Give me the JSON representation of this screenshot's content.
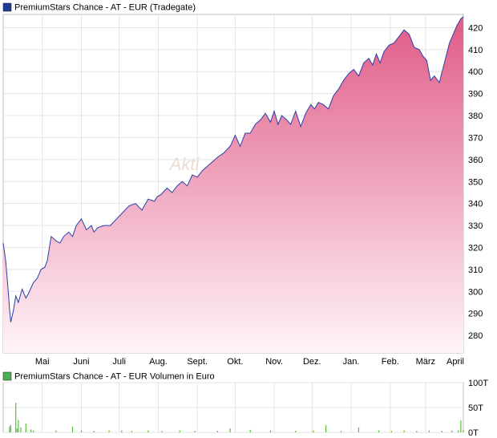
{
  "chart_data": [
    {
      "type": "area",
      "title": "PremiumStars Chance - AT - EUR (Tradegate)",
      "legend_color": "#1f3a93",
      "line_color": "#2a3fa8",
      "fill_top_color": "#e05a86",
      "fill_bottom_color": "#fff5f8",
      "watermark": "Akti",
      "grid": true,
      "ylim": [
        272,
        426
      ],
      "yticks": [
        280,
        290,
        300,
        310,
        320,
        330,
        340,
        350,
        360,
        370,
        380,
        390,
        400,
        410,
        420
      ],
      "xlim": [
        0,
        365
      ],
      "month_ticks": [
        {
          "label": "Mai",
          "x": 31
        },
        {
          "label": "Juni",
          "x": 62
        },
        {
          "label": "Juli",
          "x": 92
        },
        {
          "label": "Aug.",
          "x": 123
        },
        {
          "label": "Sept.",
          "x": 154
        },
        {
          "label": "Okt.",
          "x": 184
        },
        {
          "label": "Nov.",
          "x": 215
        },
        {
          "label": "Dez.",
          "x": 245
        },
        {
          "label": "Jan.",
          "x": 276
        },
        {
          "label": "Feb.",
          "x": 307
        },
        {
          "label": "März",
          "x": 335
        },
        {
          "label": "April",
          "x": 366
        }
      ],
      "x": [
        0,
        2,
        4,
        5,
        6,
        8,
        10,
        12,
        15,
        18,
        20,
        24,
        27,
        30,
        33,
        35,
        38,
        42,
        45,
        48,
        52,
        55,
        58,
        62,
        66,
        70,
        72,
        75,
        80,
        85,
        90,
        95,
        100,
        105,
        110,
        115,
        120,
        122,
        125,
        130,
        134,
        138,
        142,
        146,
        150,
        154,
        158,
        162,
        166,
        170,
        175,
        180,
        184,
        188,
        192,
        196,
        200,
        204,
        208,
        212,
        215,
        218,
        221,
        225,
        228,
        232,
        236,
        240,
        244,
        247,
        250,
        254,
        258,
        262,
        266,
        270,
        274,
        278,
        282,
        286,
        290,
        293,
        296,
        299,
        302,
        306,
        310,
        314,
        318,
        322,
        326,
        330,
        333,
        336,
        339,
        342,
        346,
        350,
        354,
        357,
        360,
        363,
        365
      ],
      "values": [
        322,
        314,
        300,
        292,
        286,
        291,
        298,
        295,
        301,
        297,
        299,
        304,
        306,
        310,
        311,
        314,
        325,
        323,
        322,
        325,
        327,
        325,
        330,
        333,
        328,
        330,
        327,
        329,
        330,
        330,
        333,
        336,
        339,
        340,
        337,
        342,
        341,
        343,
        344,
        347,
        345,
        348,
        350,
        348,
        353,
        352,
        355,
        357,
        359,
        361,
        363,
        366,
        371,
        366,
        372,
        372,
        376,
        378,
        381,
        377,
        382,
        376,
        380,
        378,
        376,
        382,
        375,
        381,
        385,
        383,
        386,
        385,
        383,
        389,
        392,
        396,
        399,
        401,
        398,
        404,
        406,
        403,
        408,
        404,
        409,
        412,
        413,
        416,
        419,
        417,
        411,
        410,
        407,
        405,
        396,
        398,
        395,
        404,
        413,
        417,
        421,
        424,
        425
      ]
    },
    {
      "type": "bar",
      "title": "PremiumStars Chance - AT - EUR Volumen in Euro",
      "legend_color": "#4caf50",
      "bar_color": "#5bbf3a",
      "grid": true,
      "ylim": [
        0,
        100
      ],
      "yticks": [
        0,
        50,
        100
      ],
      "ytick_labels": [
        "0T",
        "50T",
        "100T"
      ],
      "xlim": [
        0,
        365
      ],
      "x": [
        5,
        6,
        10,
        11,
        12,
        14,
        18,
        22,
        24,
        42,
        55,
        62,
        72,
        84,
        94,
        102,
        115,
        126,
        140,
        152,
        170,
        180,
        196,
        212,
        232,
        246,
        256,
        268,
        282,
        298,
        308,
        318,
        328,
        338,
        348,
        356,
        361,
        363,
        365
      ],
      "values": [
        12,
        15,
        60,
        8,
        25,
        10,
        18,
        6,
        4,
        4,
        12,
        4,
        3,
        4,
        4,
        3,
        4,
        3,
        4,
        3,
        3,
        8,
        5,
        4,
        3,
        4,
        15,
        3,
        10,
        4,
        3,
        4,
        3,
        4,
        3,
        4,
        4,
        24,
        5
      ]
    }
  ]
}
